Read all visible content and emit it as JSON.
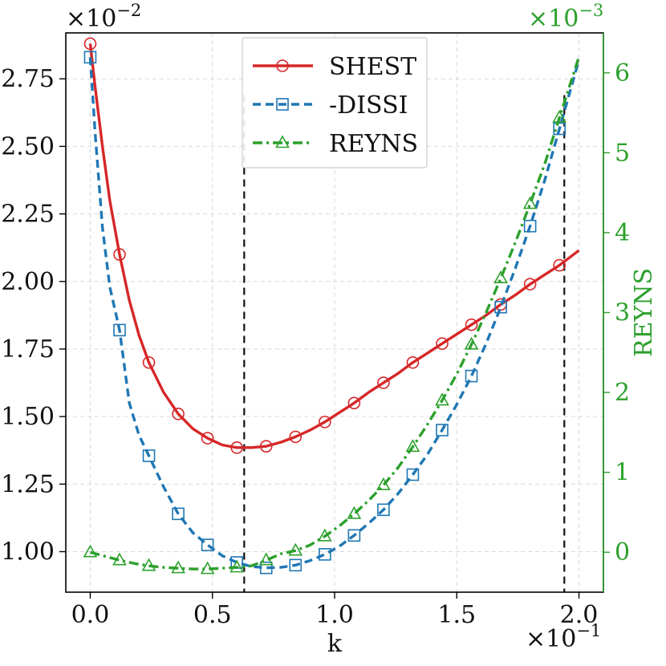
{
  "chart_data": {
    "type": "line",
    "xlabel": "k",
    "ylabel": "",
    "y2label": "REYNS",
    "x_scale_label": "×10",
    "x_scale_exp": "−1",
    "y_scale_label": "×10",
    "y_scale_exp": "−2",
    "y2_scale_label": "×10",
    "y2_scale_exp": "−3",
    "xlim": [
      -0.1,
      2.1
    ],
    "ylim": [
      0.85,
      2.92
    ],
    "y2lim": [
      -0.5,
      6.5
    ],
    "xticks": [
      0.0,
      0.5,
      1.0,
      1.5,
      2.0
    ],
    "xtick_labels": [
      "0.0",
      "0.5",
      "1.0",
      "1.5",
      "2.0"
    ],
    "yticks": [
      1.0,
      1.25,
      1.5,
      1.75,
      2.0,
      2.25,
      2.5,
      2.75
    ],
    "ytick_labels": [
      "1.00",
      "1.25",
      "1.50",
      "1.75",
      "2.00",
      "2.25",
      "2.50",
      "2.75"
    ],
    "y2ticks": [
      0,
      1,
      2,
      3,
      4,
      5,
      6
    ],
    "y2tick_labels": [
      "0",
      "1",
      "2",
      "3",
      "4",
      "5",
      "6"
    ],
    "grid": true,
    "legend_position": "top-center",
    "vlines": [
      0.63,
      1.94
    ],
    "marker_x": [
      0.0,
      0.12,
      0.24,
      0.36,
      0.48,
      0.6,
      0.72,
      0.84,
      0.96,
      1.08,
      1.2,
      1.32,
      1.44,
      1.56,
      1.68,
      1.8,
      1.92
    ],
    "series": [
      {
        "name": "SHEST",
        "axis": "left",
        "color": "#d62728",
        "linestyle": "solid",
        "marker": "circle",
        "x": [
          0.0,
          0.02,
          0.05,
          0.08,
          0.12,
          0.16,
          0.2,
          0.24,
          0.3,
          0.36,
          0.42,
          0.48,
          0.54,
          0.6,
          0.66,
          0.72,
          0.78,
          0.84,
          0.9,
          0.96,
          1.02,
          1.08,
          1.14,
          1.2,
          1.26,
          1.32,
          1.38,
          1.44,
          1.5,
          1.56,
          1.62,
          1.68,
          1.74,
          1.8,
          1.86,
          1.92,
          2.0
        ],
        "values": [
          2.88,
          2.72,
          2.5,
          2.3,
          2.1,
          1.93,
          1.8,
          1.7,
          1.59,
          1.51,
          1.455,
          1.42,
          1.395,
          1.385,
          1.385,
          1.39,
          1.405,
          1.425,
          1.45,
          1.48,
          1.515,
          1.55,
          1.59,
          1.625,
          1.66,
          1.7,
          1.735,
          1.77,
          1.805,
          1.84,
          1.875,
          1.915,
          1.95,
          1.99,
          2.025,
          2.06,
          2.115
        ],
        "marker_values": [
          2.88,
          2.1,
          1.7,
          1.51,
          1.42,
          1.385,
          1.39,
          1.425,
          1.48,
          1.55,
          1.625,
          1.7,
          1.77,
          1.84,
          1.915,
          1.99,
          2.06
        ]
      },
      {
        "name": "-DISSI",
        "axis": "left",
        "color": "#1f77b4",
        "linestyle": "dashed",
        "marker": "square",
        "x": [
          0.0,
          0.02,
          0.05,
          0.08,
          0.12,
          0.16,
          0.2,
          0.24,
          0.3,
          0.36,
          0.42,
          0.48,
          0.54,
          0.6,
          0.66,
          0.72,
          0.78,
          0.84,
          0.9,
          0.96,
          1.02,
          1.08,
          1.14,
          1.2,
          1.26,
          1.32,
          1.38,
          1.44,
          1.5,
          1.56,
          1.62,
          1.68,
          1.74,
          1.8,
          1.86,
          1.92,
          2.0
        ],
        "values": [
          2.83,
          2.55,
          2.2,
          1.98,
          1.82,
          1.55,
          1.43,
          1.355,
          1.24,
          1.14,
          1.07,
          1.025,
          0.985,
          0.96,
          0.945,
          0.94,
          0.942,
          0.95,
          0.967,
          0.99,
          1.02,
          1.06,
          1.105,
          1.155,
          1.215,
          1.285,
          1.36,
          1.45,
          1.545,
          1.65,
          1.77,
          1.905,
          2.05,
          2.205,
          2.375,
          2.565,
          2.82
        ],
        "marker_values": [
          2.83,
          1.82,
          1.355,
          1.14,
          1.025,
          0.96,
          0.94,
          0.95,
          0.99,
          1.06,
          1.155,
          1.285,
          1.45,
          1.65,
          1.905,
          2.205,
          2.565
        ]
      },
      {
        "name": "REYNS",
        "axis": "right",
        "color": "#2ca02c",
        "linestyle": "dashdot",
        "marker": "triangle",
        "x": [
          0.0,
          0.06,
          0.12,
          0.18,
          0.24,
          0.3,
          0.36,
          0.42,
          0.48,
          0.54,
          0.6,
          0.66,
          0.72,
          0.78,
          0.84,
          0.9,
          0.96,
          1.02,
          1.08,
          1.14,
          1.2,
          1.26,
          1.32,
          1.38,
          1.44,
          1.5,
          1.56,
          1.62,
          1.68,
          1.74,
          1.8,
          1.86,
          1.92,
          2.0
        ],
        "values": [
          0.0,
          -0.05,
          -0.1,
          -0.14,
          -0.17,
          -0.19,
          -0.2,
          -0.21,
          -0.21,
          -0.2,
          -0.19,
          -0.17,
          -0.1,
          -0.02,
          0.02,
          0.09,
          0.2,
          0.33,
          0.48,
          0.65,
          0.84,
          1.06,
          1.32,
          1.6,
          1.9,
          2.23,
          2.6,
          3.0,
          3.43,
          3.88,
          4.36,
          4.86,
          5.44,
          6.2
        ],
        "marker_values": [
          0.0,
          -0.1,
          -0.17,
          -0.2,
          -0.21,
          -0.19,
          -0.1,
          0.02,
          0.2,
          0.48,
          0.84,
          1.32,
          1.9,
          2.6,
          3.43,
          4.36,
          5.44
        ]
      }
    ]
  }
}
